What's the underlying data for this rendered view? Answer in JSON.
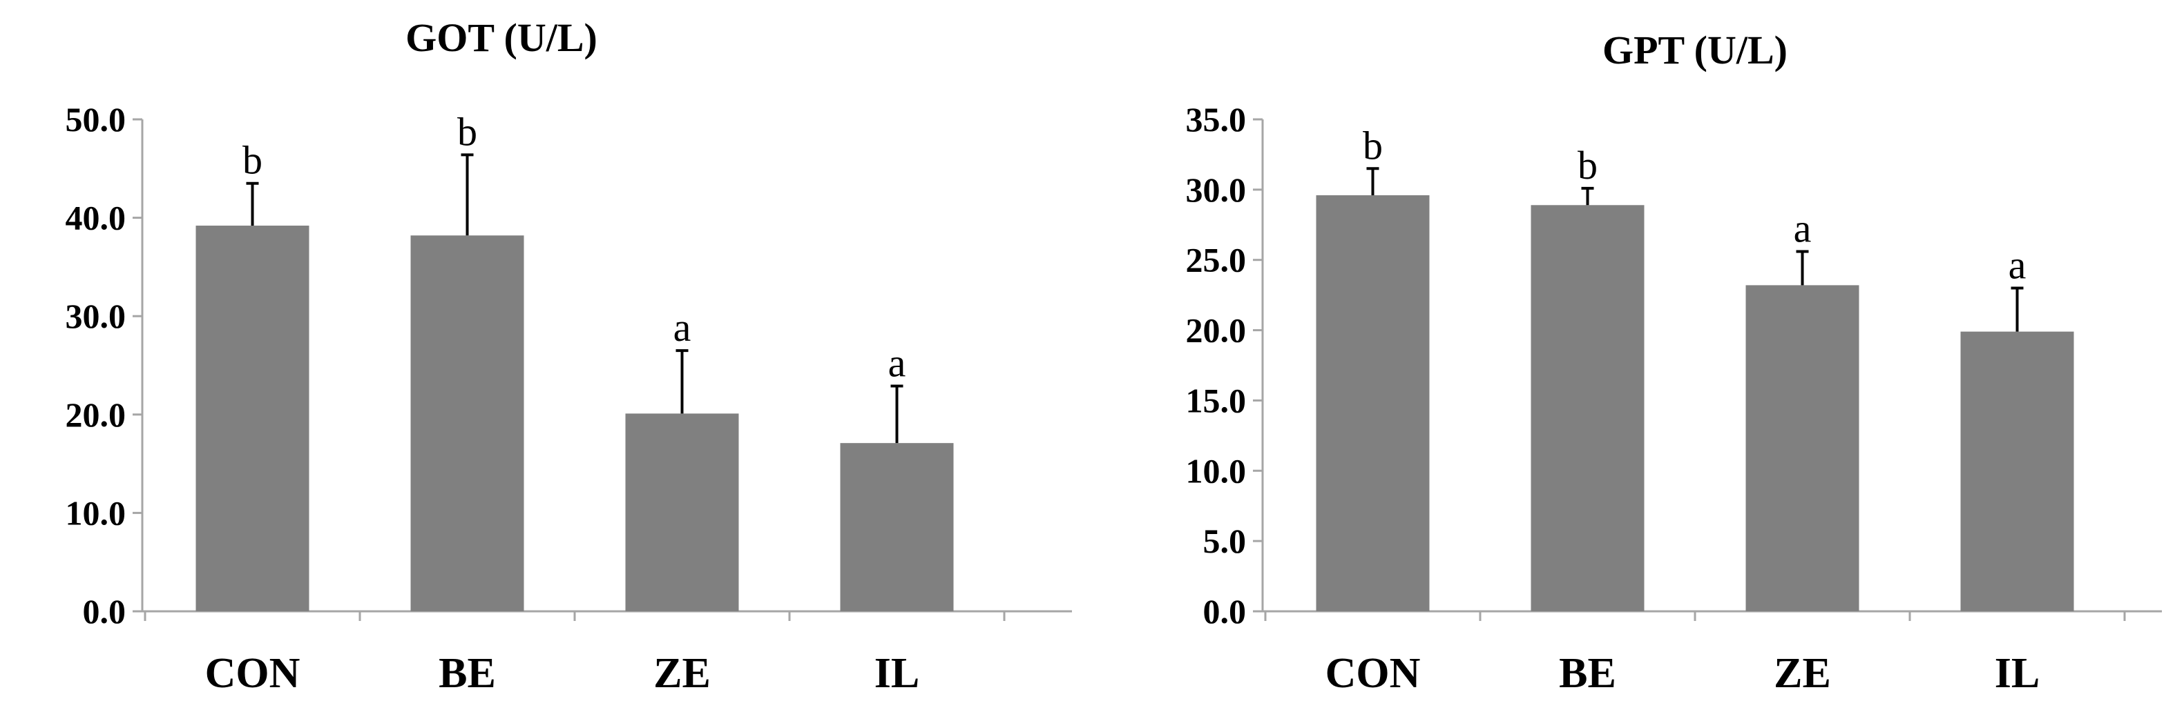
{
  "chart_data": [
    {
      "type": "bar",
      "title": "GOT (U/L)",
      "categories": [
        "CON",
        "BE",
        "ZE",
        "IL"
      ],
      "values": [
        39.2,
        38.2,
        20.1,
        17.1
      ],
      "error_plus": [
        4.3,
        8.2,
        6.4,
        5.8
      ],
      "significance": [
        "b",
        "b",
        "a",
        "a"
      ],
      "ylim": [
        0,
        50
      ],
      "yticks": [
        "0.0",
        "10.0",
        "20.0",
        "30.0",
        "40.0",
        "50.0"
      ],
      "bar_color": "#808080",
      "grid": false,
      "legend": false
    },
    {
      "type": "bar",
      "title": "GPT (U/L)",
      "categories": [
        "CON",
        "BE",
        "ZE",
        "IL"
      ],
      "values": [
        29.6,
        28.9,
        23.2,
        19.9
      ],
      "error_plus": [
        1.9,
        1.2,
        2.4,
        3.1
      ],
      "significance": [
        "b",
        "b",
        "a",
        "a"
      ],
      "ylim": [
        0,
        35
      ],
      "yticks": [
        "0.0",
        "5.0",
        "10.0",
        "15.0",
        "20.0",
        "25.0",
        "30.0",
        "35.0"
      ],
      "bar_color": "#808080",
      "grid": false,
      "legend": false
    }
  ]
}
